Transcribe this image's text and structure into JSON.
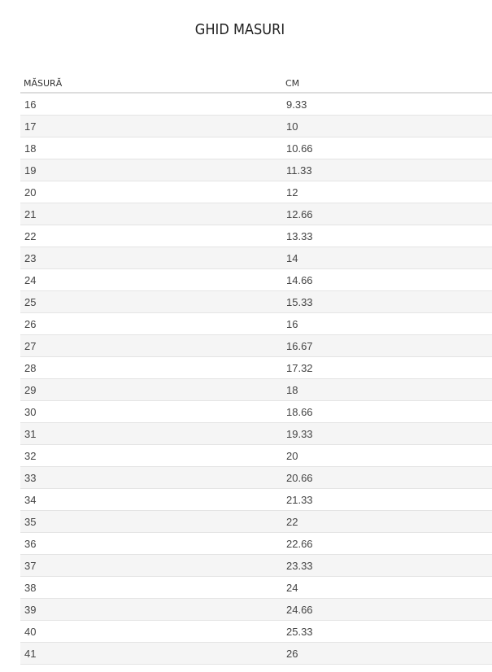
{
  "title": "GHID MASURI",
  "table": {
    "headers": [
      "MĂSURĂ",
      "CM"
    ],
    "rows": [
      [
        "16",
        "9.33"
      ],
      [
        "17",
        "10"
      ],
      [
        "18",
        "10.66"
      ],
      [
        "19",
        "11.33"
      ],
      [
        "20",
        "12"
      ],
      [
        "21",
        "12.66"
      ],
      [
        "22",
        "13.33"
      ],
      [
        "23",
        "14"
      ],
      [
        "24",
        "14.66"
      ],
      [
        "25",
        "15.33"
      ],
      [
        "26",
        "16"
      ],
      [
        "27",
        "16.67"
      ],
      [
        "28",
        "17.32"
      ],
      [
        "29",
        "18"
      ],
      [
        "30",
        "18.66"
      ],
      [
        "31",
        "19.33"
      ],
      [
        "32",
        "20"
      ],
      [
        "33",
        "20.66"
      ],
      [
        "34",
        "21.33"
      ],
      [
        "35",
        "22"
      ],
      [
        "36",
        "22.66"
      ],
      [
        "37",
        "23.33"
      ],
      [
        "38",
        "24"
      ],
      [
        "39",
        "24.66"
      ],
      [
        "40",
        "25.33"
      ],
      [
        "41",
        "26"
      ]
    ]
  }
}
